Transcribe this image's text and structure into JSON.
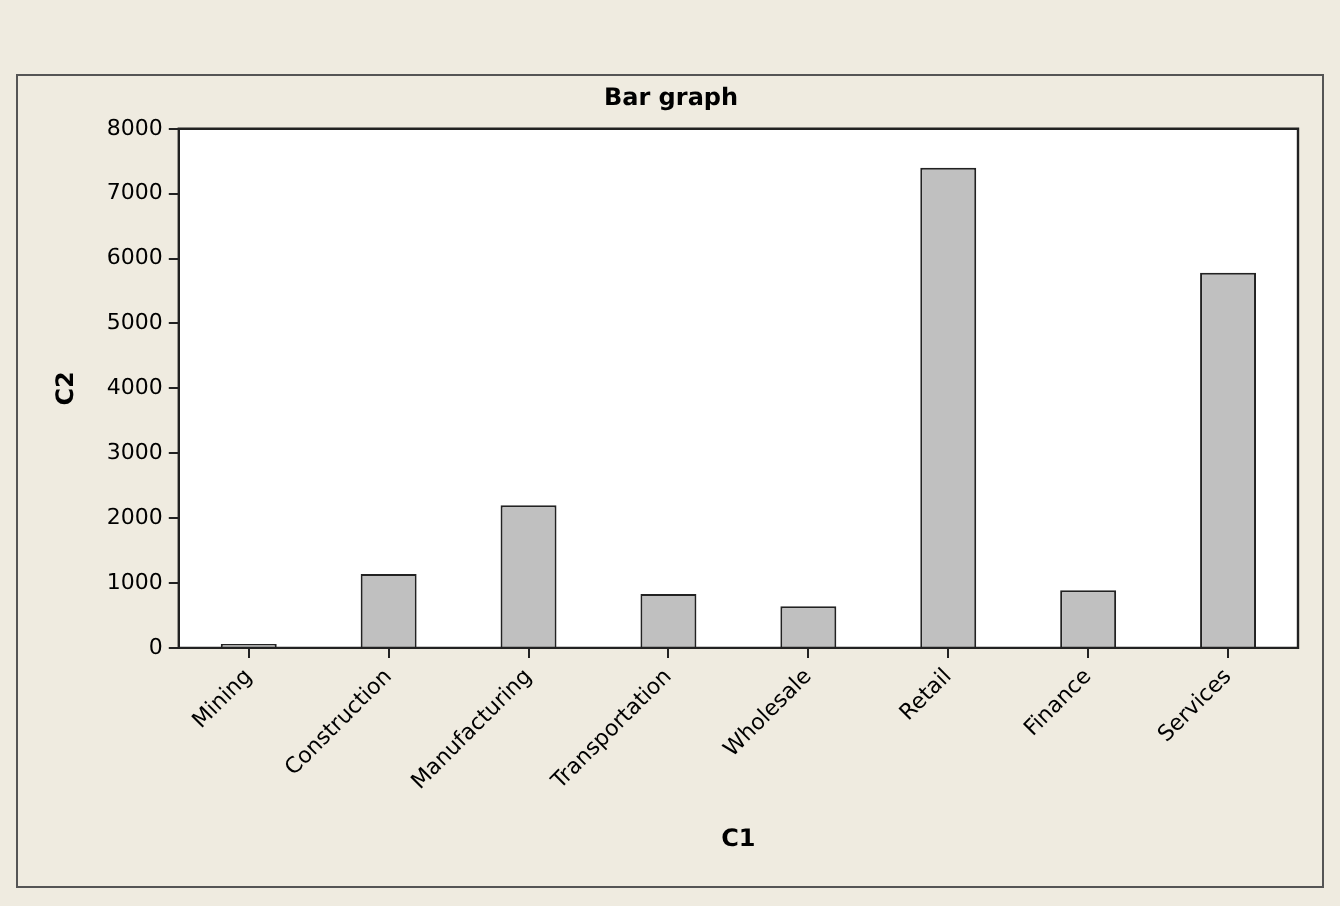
{
  "chart_data": {
    "type": "bar",
    "title": "Bar graph",
    "xlabel": "C1",
    "ylabel": "C2",
    "categories": [
      "Mining",
      "Construction",
      "Manufacturing",
      "Transportation",
      "Wholesale",
      "Retail",
      "Finance",
      "Services"
    ],
    "values": [
      60,
      1140,
      2200,
      830,
      640,
      7400,
      890,
      5780
    ],
    "color": "#c0c0c0",
    "ylim": [
      0,
      8000
    ],
    "yticks": [
      0,
      1000,
      2000,
      3000,
      4000,
      5000,
      6000,
      7000,
      8000
    ],
    "grid": false,
    "legend": false
  }
}
